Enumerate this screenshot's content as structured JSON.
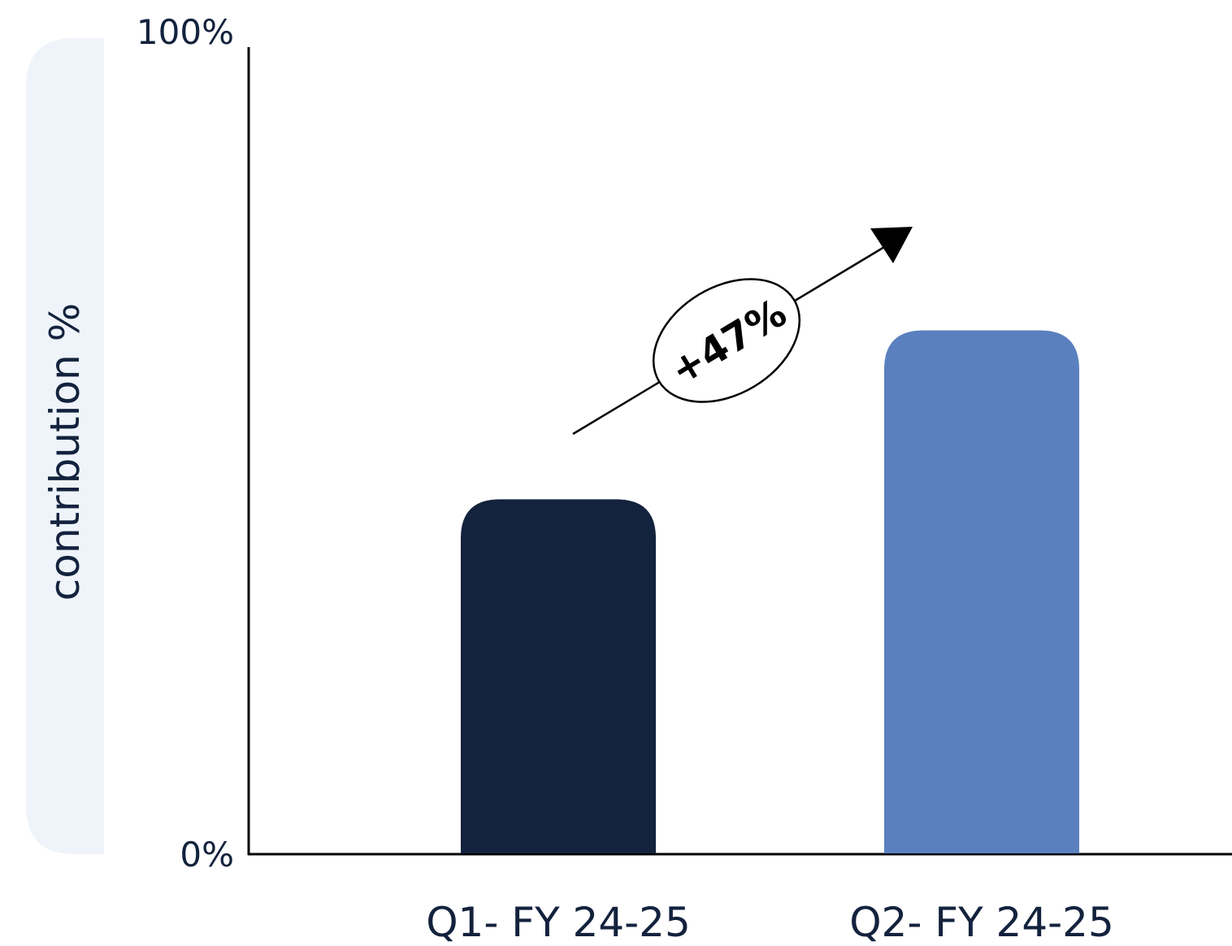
{
  "chart_data": {
    "type": "bar",
    "categories": [
      "Q1- FY 24-25",
      "Q2- FY 24-25"
    ],
    "values": [
      44,
      65
    ],
    "ylabel": "contribution %",
    "xlabel": "",
    "ylim": [
      0,
      100
    ],
    "y_tick_labels": [
      "0%",
      "100%"
    ],
    "grid": false,
    "colors": [
      "#13223d",
      "#5b80bf"
    ],
    "annotation": "+47%",
    "colors_ui": {
      "text": "#13223d",
      "axis": "#000000",
      "ylabel_band": "#eff4fa"
    }
  }
}
